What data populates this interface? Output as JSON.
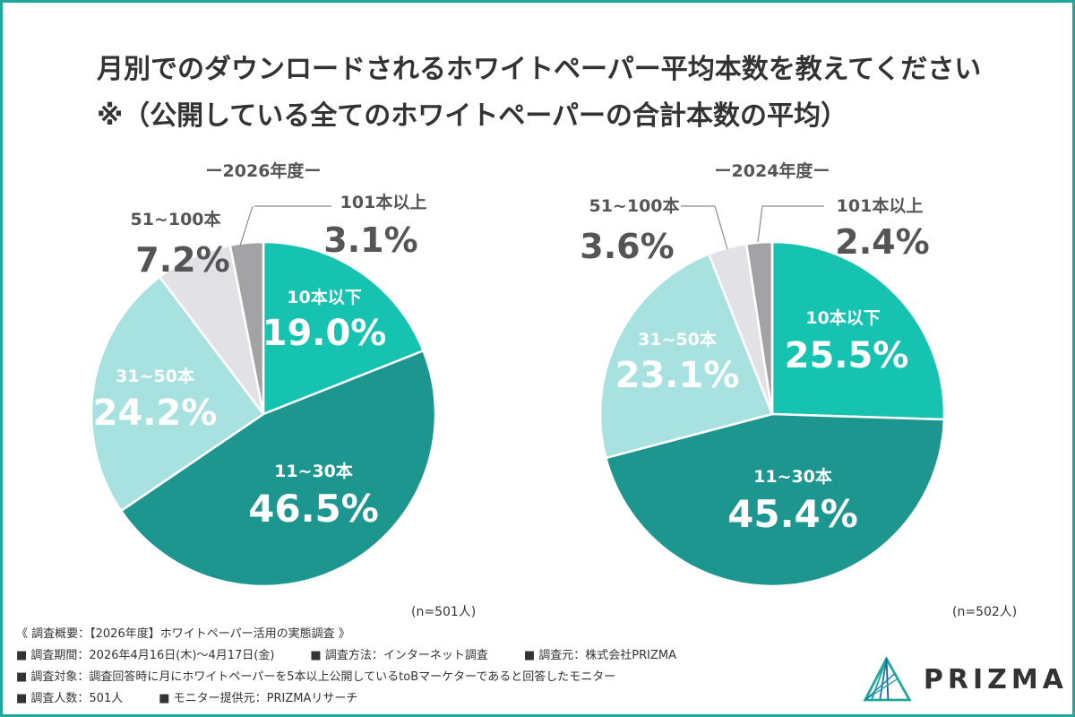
{
  "title_line1": "月別でのダウンロードされるホワイトペーパー平均本数を教えてください",
  "title_line2": "※（公開している全てのホワイトペーパーの合計本数の平均）",
  "colors": {
    "frame": "#1fa89a",
    "c10": "#16c2b0",
    "c11_30": "#1e9690",
    "c31_50": "#a8e2e0",
    "c51_100": "#e2e1e6",
    "c101": "#a3a3a6",
    "text_dark": "#555555"
  },
  "chart_data": [
    {
      "type": "pie",
      "title": "ー2026年度ー",
      "categories": [
        "10本以下",
        "11~30本",
        "31~50本",
        "51~100本",
        "101本以上"
      ],
      "values": [
        19.0,
        46.5,
        24.2,
        7.2,
        3.1
      ],
      "value_labels": [
        "19.0%",
        "46.5%",
        "24.2%",
        "7.2%",
        "3.1%"
      ],
      "sample": "(n=501人)"
    },
    {
      "type": "pie",
      "title": "ー2024年度ー",
      "categories": [
        "10本以下",
        "11~30本",
        "31~50本",
        "51~100本",
        "101本以上"
      ],
      "values": [
        25.5,
        45.4,
        23.1,
        3.6,
        2.4
      ],
      "value_labels": [
        "25.5%",
        "45.4%",
        "23.1%",
        "3.6%",
        "2.4%"
      ],
      "sample": "(n=502人)"
    }
  ],
  "footer": {
    "heading": "《 調査概要：【2026年度】ホワイトペーパー活用の実態調査 》",
    "period": "■ 調査期間：2026年4月16日(木)〜4月17日(金)",
    "method": "■ 調査方法：インターネット調査",
    "source": "■ 調査元：株式会社PRIZMA",
    "target": "■ 調査対象：調査回答時に月にホワイトペーパーを5本以上公開しているtoBマーケターであると回答したモニター",
    "count": "■ 調査人数：501人",
    "provider": "■ モニター提供元：PRIZMAリサーチ"
  },
  "logo": {
    "text": "PRIZMA"
  }
}
